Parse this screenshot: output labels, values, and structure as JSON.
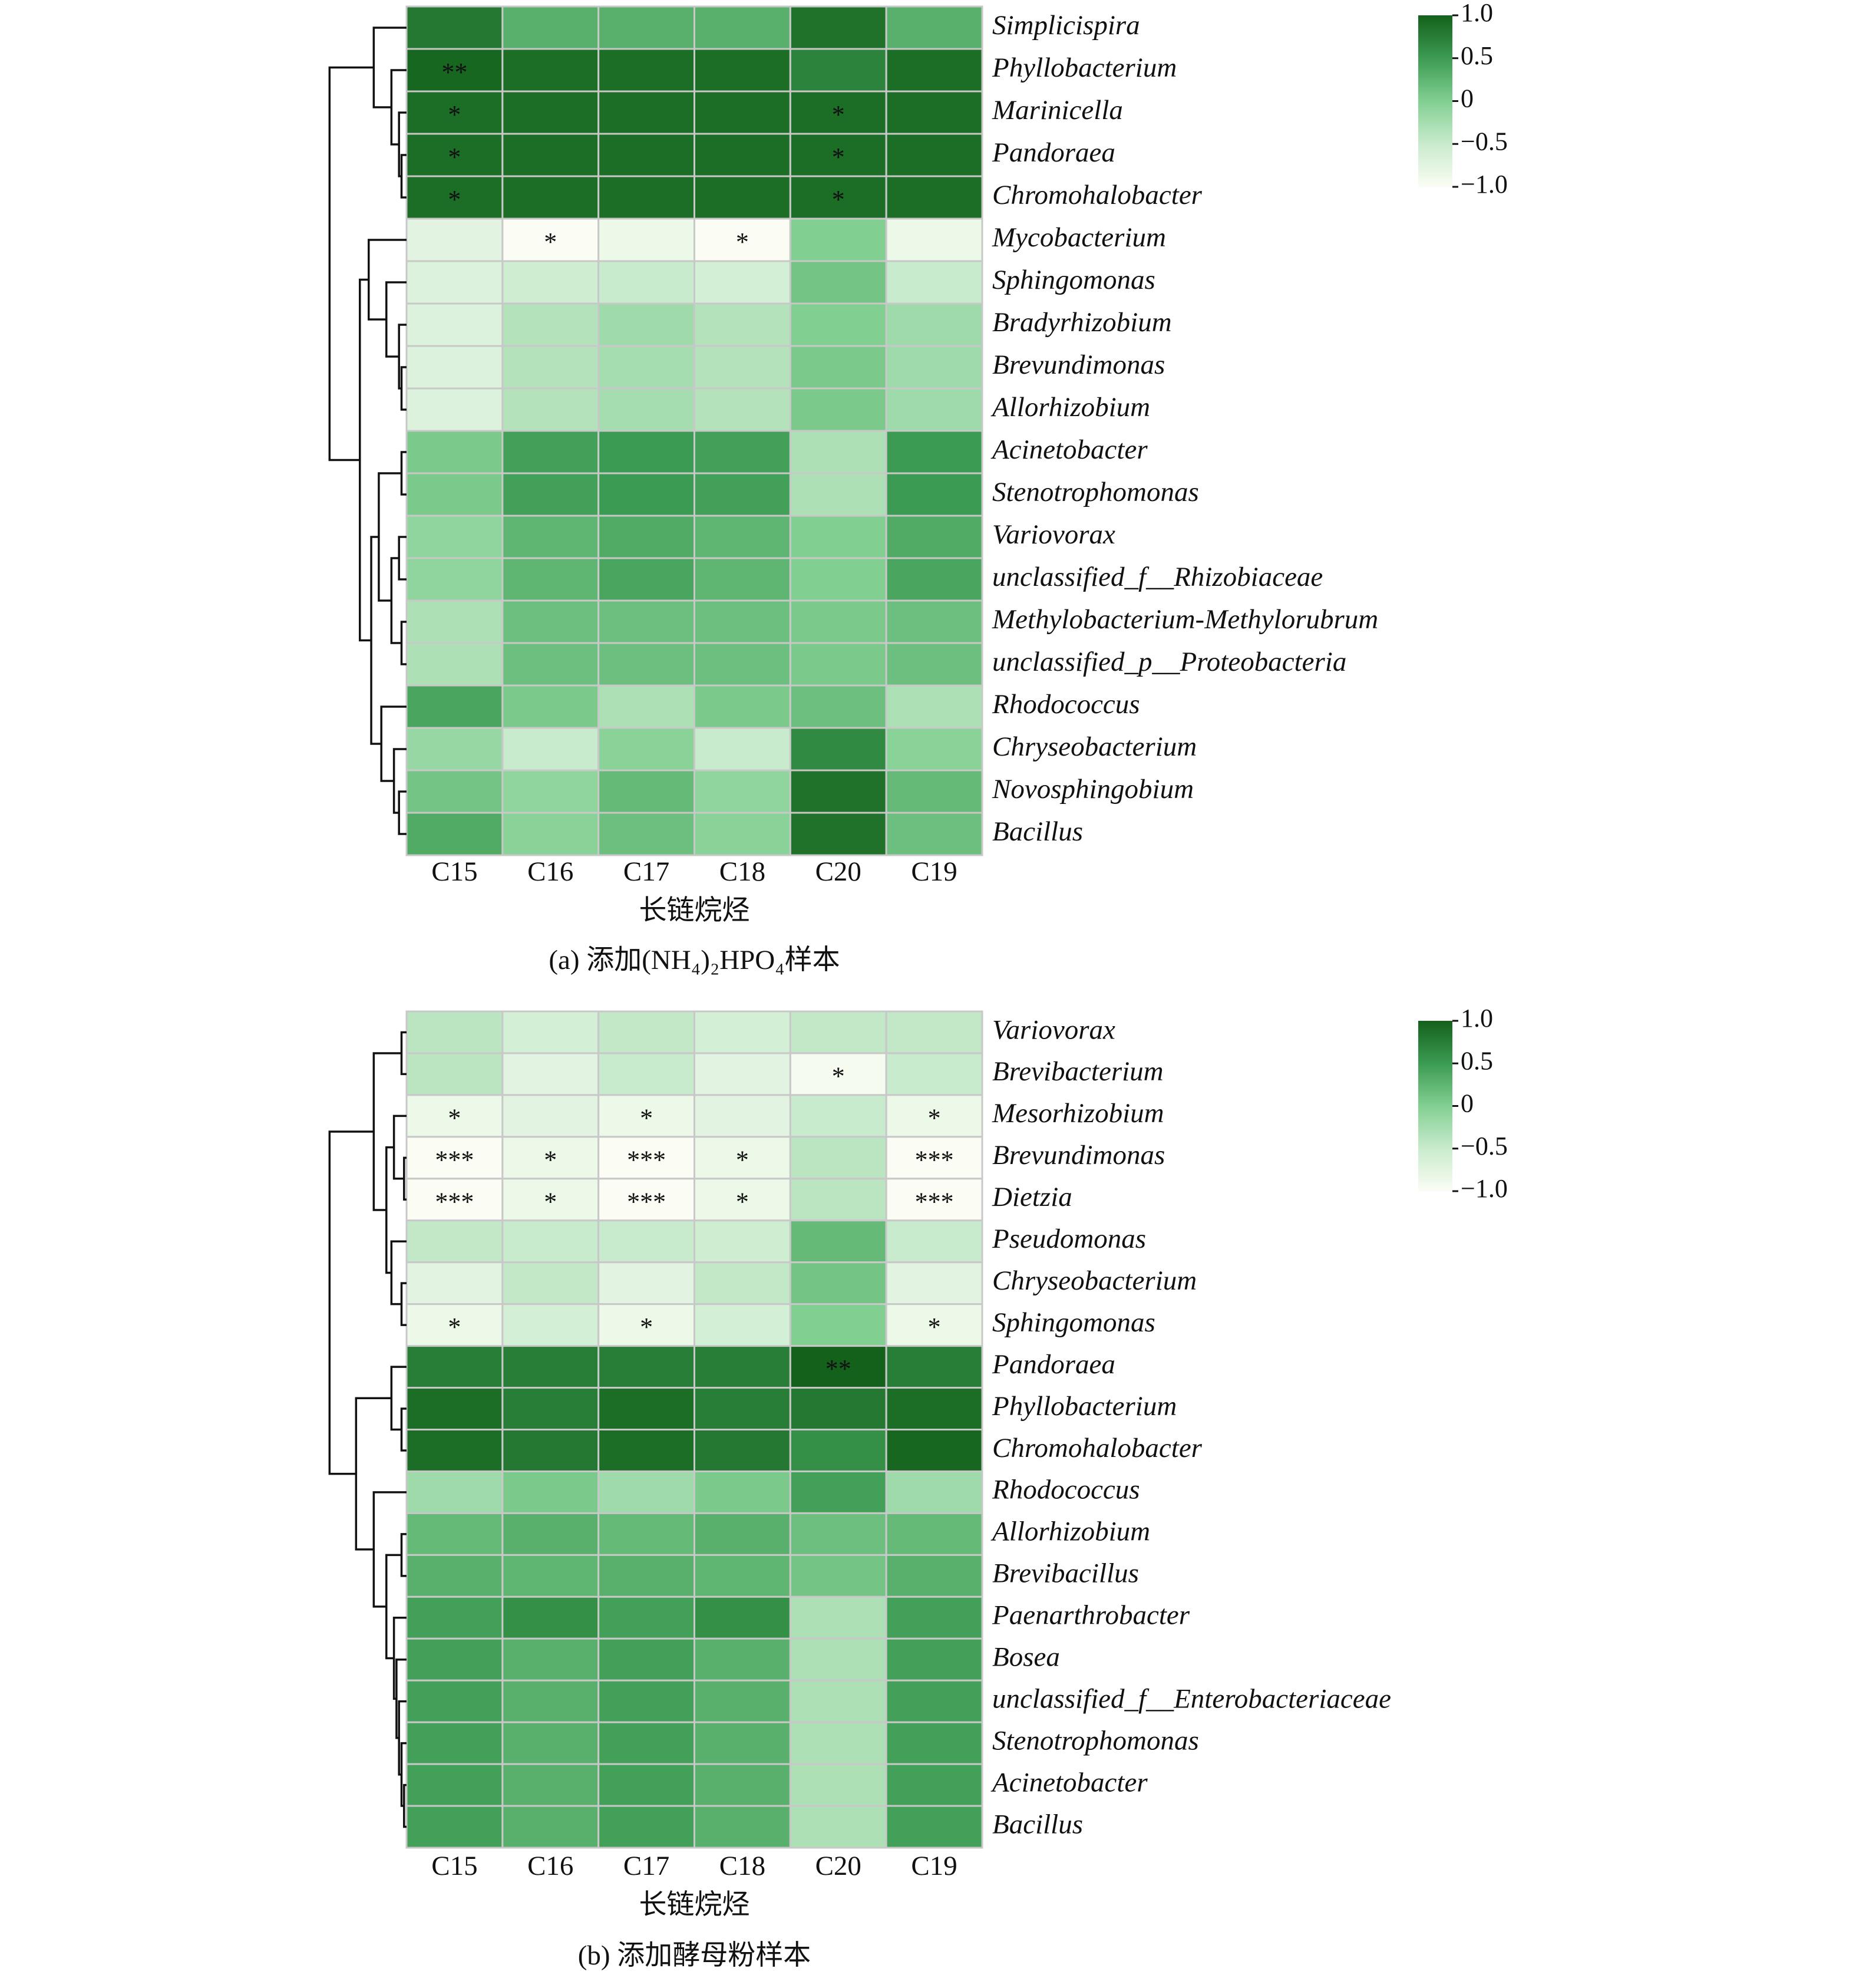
{
  "chart_data": [
    {
      "type": "heatmap",
      "columns": [
        "C15",
        "C16",
        "C17",
        "C18",
        "C20",
        "C19"
      ],
      "rows": [
        "Simplicispira",
        "Phyllobacterium",
        "Marinicella",
        "Pandoraea",
        "Chromohalobacter",
        "Mycobacterium",
        "Sphingomonas",
        "Bradyrhizobium",
        "Brevundimonas",
        "Allorhizobium",
        "Acinetobacter",
        "Stenotrophomonas",
        "Variovorax",
        "unclassified_f__Rhizobiaceae",
        "Methylobacterium-Methylorubrum",
        "unclassified_p__Proteobacteria",
        "Rhodococcus",
        "Chryseobacterium",
        "Novosphingobium",
        "Bacillus"
      ],
      "values": [
        [
          0.8,
          0.3,
          0.3,
          0.3,
          0.85,
          0.3
        ],
        [
          0.95,
          0.9,
          0.9,
          0.9,
          0.7,
          0.9
        ],
        [
          0.9,
          0.9,
          0.9,
          0.9,
          0.9,
          0.9
        ],
        [
          0.9,
          0.9,
          0.9,
          0.9,
          0.9,
          0.9
        ],
        [
          0.9,
          0.9,
          0.9,
          0.9,
          0.9,
          0.9
        ],
        [
          -0.75,
          -1.0,
          -0.85,
          -1.0,
          0.0,
          -0.85
        ],
        [
          -0.7,
          -0.55,
          -0.5,
          -0.6,
          0.1,
          -0.5
        ],
        [
          -0.7,
          -0.35,
          -0.2,
          -0.35,
          0.0,
          -0.2
        ],
        [
          -0.7,
          -0.35,
          -0.25,
          -0.35,
          0.05,
          -0.2
        ],
        [
          -0.7,
          -0.35,
          -0.25,
          -0.35,
          0.05,
          -0.2
        ],
        [
          0.05,
          0.45,
          0.5,
          0.45,
          -0.3,
          0.5
        ],
        [
          0.05,
          0.45,
          0.5,
          0.45,
          -0.3,
          0.5
        ],
        [
          -0.1,
          0.25,
          0.35,
          0.25,
          0.0,
          0.35
        ],
        [
          -0.1,
          0.25,
          0.4,
          0.25,
          0.0,
          0.4
        ],
        [
          -0.3,
          0.15,
          0.15,
          0.15,
          0.05,
          0.15
        ],
        [
          -0.3,
          0.15,
          0.15,
          0.15,
          0.05,
          0.15
        ],
        [
          0.4,
          0.05,
          -0.3,
          0.05,
          0.15,
          -0.3
        ],
        [
          -0.15,
          -0.5,
          -0.05,
          -0.5,
          0.65,
          -0.05
        ],
        [
          0.1,
          -0.1,
          0.2,
          -0.1,
          0.85,
          0.2
        ],
        [
          0.35,
          -0.05,
          0.15,
          -0.05,
          0.85,
          0.15
        ]
      ],
      "annotations": [
        [
          null,
          null,
          null,
          null,
          null,
          null
        ],
        [
          "**",
          null,
          null,
          null,
          null,
          null
        ],
        [
          "*",
          null,
          null,
          null,
          "*",
          null
        ],
        [
          "*",
          null,
          null,
          null,
          "*",
          null
        ],
        [
          "*",
          null,
          null,
          null,
          "*",
          null
        ],
        [
          null,
          "*",
          null,
          "*",
          null,
          null
        ],
        [
          null,
          null,
          null,
          null,
          null,
          null
        ],
        [
          null,
          null,
          null,
          null,
          null,
          null
        ],
        [
          null,
          null,
          null,
          null,
          null,
          null
        ],
        [
          null,
          null,
          null,
          null,
          null,
          null
        ],
        [
          null,
          null,
          null,
          null,
          null,
          null
        ],
        [
          null,
          null,
          null,
          null,
          null,
          null
        ],
        [
          null,
          null,
          null,
          null,
          null,
          null
        ],
        [
          null,
          null,
          null,
          null,
          null,
          null
        ],
        [
          null,
          null,
          null,
          null,
          null,
          null
        ],
        [
          null,
          null,
          null,
          null,
          null,
          null
        ],
        [
          null,
          null,
          null,
          null,
          null,
          null
        ],
        [
          null,
          null,
          null,
          null,
          null,
          null
        ],
        [
          null,
          null,
          null,
          null,
          null,
          null
        ],
        [
          null,
          null,
          null,
          null,
          null,
          null
        ]
      ],
      "xlabel": "长链烷烃",
      "caption": "(a) 添加(NH₄)₂HPO₄样本",
      "zlim": [
        -1,
        1
      ],
      "colormap": [
        "#fbfdf4",
        "#c9ebcd",
        "#82cf92",
        "#3c9b52",
        "#14611b"
      ],
      "zticks": [
        {
          "value": 1,
          "label": "1.0"
        },
        0.5,
        0,
        {
          "value": -0.5,
          "label": "−0.5"
        },
        {
          "value": -1,
          "label": "−1.0"
        }
      ]
    },
    {
      "type": "heatmap",
      "columns": [
        "C15",
        "C16",
        "C17",
        "C18",
        "C20",
        "C19"
      ],
      "rows": [
        "Variovorax",
        "Brevibacterium",
        "Mesorhizobium",
        "Brevundimonas",
        "Dietzia",
        "Pseudomonas",
        "Chryseobacterium",
        "Sphingomonas",
        "Pandoraea",
        "Phyllobacterium",
        "Chromohalobacter",
        "Rhodococcus",
        "Allorhizobium",
        "Brevibacillus",
        "Paenarthrobacter",
        "Bosea",
        "unclassified_f__Enterobacteriaceae",
        "Stenotrophomonas",
        "Acinetobacter",
        "Bacillus"
      ],
      "values": [
        [
          -0.4,
          -0.6,
          -0.45,
          -0.6,
          -0.45,
          -0.45
        ],
        [
          -0.4,
          -0.75,
          -0.5,
          -0.75,
          -0.95,
          -0.5
        ],
        [
          -0.85,
          -0.75,
          -0.85,
          -0.75,
          -0.5,
          -0.85
        ],
        [
          -1.0,
          -0.85,
          -1.0,
          -0.85,
          -0.4,
          -1.0
        ],
        [
          -1.0,
          -0.85,
          -1.0,
          -0.85,
          -0.4,
          -1.0
        ],
        [
          -0.45,
          -0.5,
          -0.5,
          -0.55,
          0.2,
          -0.5
        ],
        [
          -0.75,
          -0.45,
          -0.75,
          -0.45,
          0.1,
          -0.75
        ],
        [
          -0.85,
          -0.6,
          -0.85,
          -0.6,
          0.0,
          -0.85
        ],
        [
          0.75,
          0.75,
          0.75,
          0.75,
          1.0,
          0.75
        ],
        [
          0.9,
          0.75,
          0.9,
          0.75,
          0.8,
          0.9
        ],
        [
          0.9,
          0.8,
          0.9,
          0.8,
          0.6,
          0.95
        ],
        [
          -0.2,
          0.05,
          -0.2,
          0.05,
          0.45,
          -0.2
        ],
        [
          0.2,
          0.3,
          0.2,
          0.3,
          0.15,
          0.2
        ],
        [
          0.3,
          0.25,
          0.3,
          0.25,
          0.1,
          0.3
        ],
        [
          0.45,
          0.6,
          0.45,
          0.6,
          -0.3,
          0.45
        ],
        [
          0.45,
          0.3,
          0.45,
          0.3,
          -0.3,
          0.45
        ],
        [
          0.45,
          0.3,
          0.45,
          0.3,
          -0.3,
          0.45
        ],
        [
          0.45,
          0.3,
          0.45,
          0.3,
          -0.3,
          0.45
        ],
        [
          0.45,
          0.3,
          0.45,
          0.3,
          -0.3,
          0.45
        ],
        [
          0.45,
          0.3,
          0.45,
          0.3,
          -0.3,
          0.45
        ]
      ],
      "annotations": [
        [
          null,
          null,
          null,
          null,
          null,
          null
        ],
        [
          null,
          null,
          null,
          null,
          "*",
          null
        ],
        [
          "*",
          null,
          "*",
          null,
          null,
          "*"
        ],
        [
          "***",
          "*",
          "***",
          "*",
          null,
          "***"
        ],
        [
          "***",
          "*",
          "***",
          "*",
          null,
          "***"
        ],
        [
          null,
          null,
          null,
          null,
          null,
          null
        ],
        [
          null,
          null,
          null,
          null,
          null,
          null
        ],
        [
          "*",
          null,
          "*",
          null,
          null,
          "*"
        ],
        [
          null,
          null,
          null,
          null,
          "**",
          null
        ],
        [
          null,
          null,
          null,
          null,
          null,
          null
        ],
        [
          null,
          null,
          null,
          null,
          null,
          null
        ],
        [
          null,
          null,
          null,
          null,
          null,
          null
        ],
        [
          null,
          null,
          null,
          null,
          null,
          null
        ],
        [
          null,
          null,
          null,
          null,
          null,
          null
        ],
        [
          null,
          null,
          null,
          null,
          null,
          null
        ],
        [
          null,
          null,
          null,
          null,
          null,
          null
        ],
        [
          null,
          null,
          null,
          null,
          null,
          null
        ],
        [
          null,
          null,
          null,
          null,
          null,
          null
        ],
        [
          null,
          null,
          null,
          null,
          null,
          null
        ],
        [
          null,
          null,
          null,
          null,
          null,
          null
        ]
      ],
      "xlabel": "长链烷烃",
      "caption": "(b) 添加酵母粉样本",
      "zlim": [
        -1,
        1
      ],
      "colormap": [
        "#fbfdf4",
        "#c9ebcd",
        "#82cf92",
        "#3c9b52",
        "#14611b"
      ],
      "zticks": [
        {
          "value": 1,
          "label": "1.0"
        },
        0.5,
        0,
        {
          "value": -0.5,
          "label": "−0.5"
        },
        {
          "value": -1,
          "label": "−1.0"
        }
      ]
    }
  ]
}
